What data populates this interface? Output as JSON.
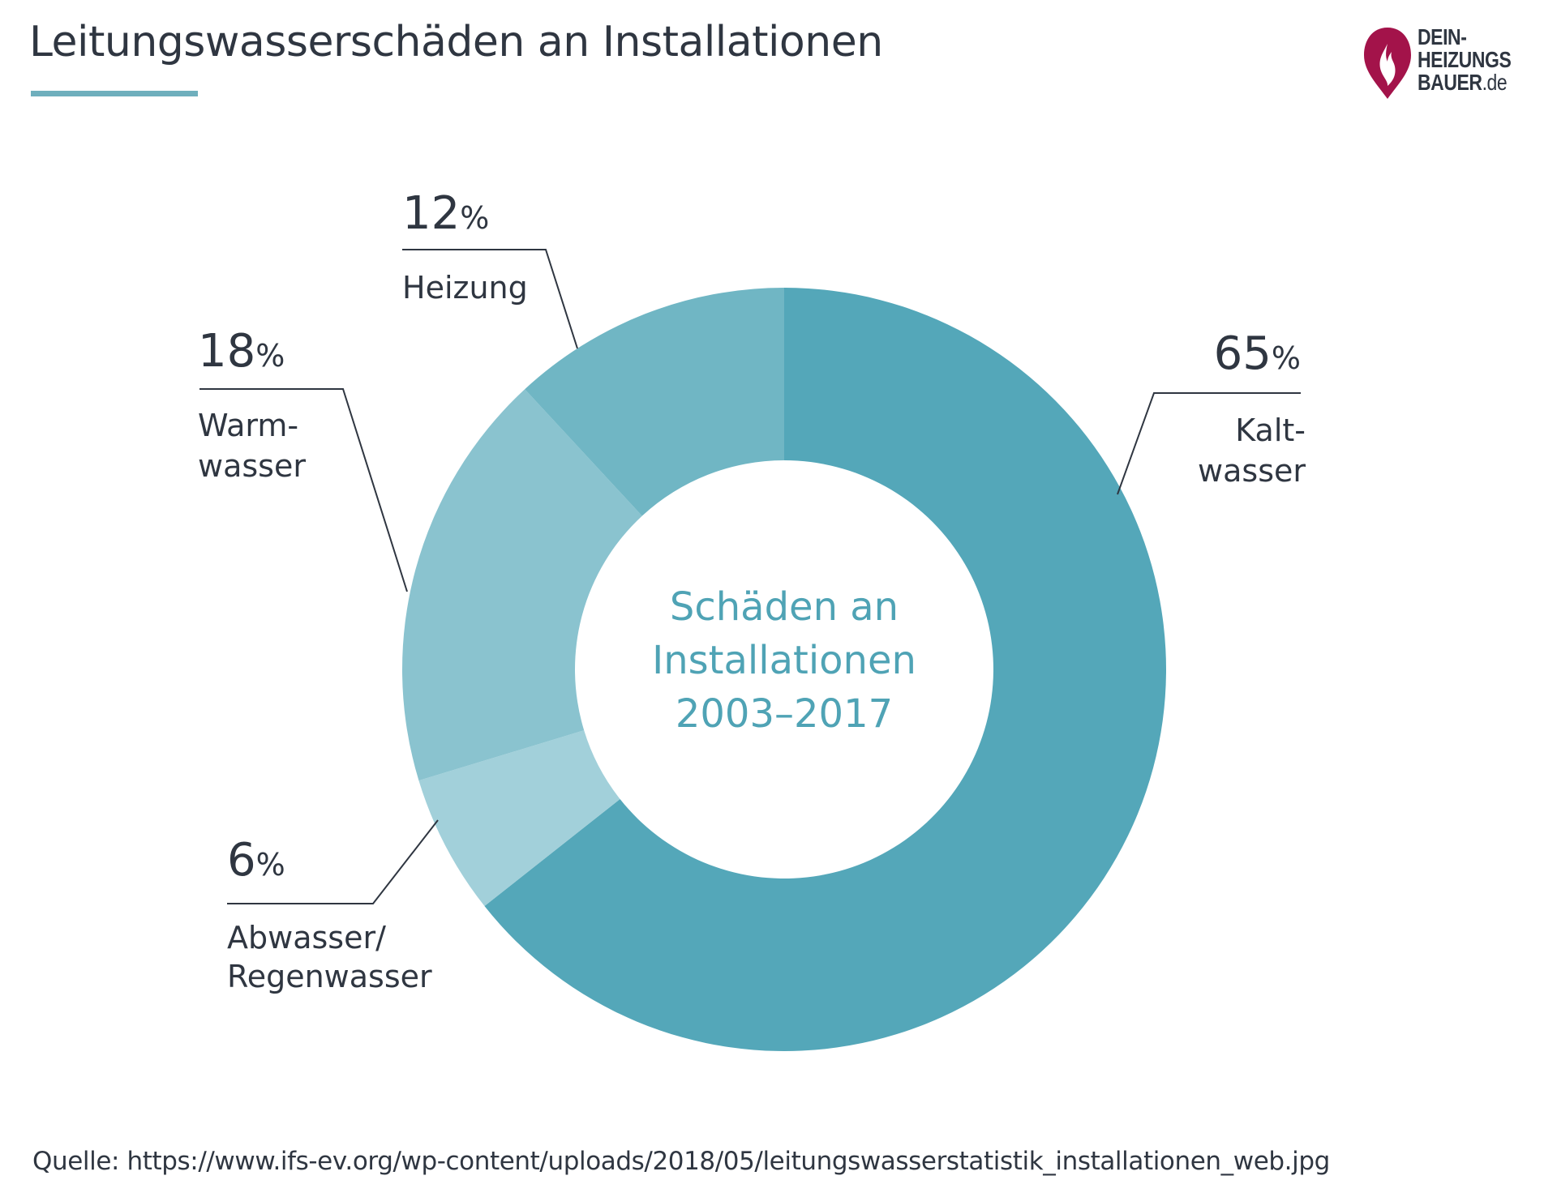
{
  "header": {
    "title": "Leitungswasserschäden an Installationen"
  },
  "logo": {
    "line1": "DEIN-",
    "line2": "HEIZUNGS",
    "line3": "BAUER",
    "tld": ".de",
    "flame_color": "#a3134a"
  },
  "chart_data": {
    "type": "pie",
    "donut": true,
    "start_angle_deg": 0,
    "direction": "clockwise",
    "center_label": [
      "Schäden an",
      "Installationen",
      "2003–2017"
    ],
    "categories": [
      "Kaltwasser",
      "Abwasser/Regenwasser",
      "Warmwasser",
      "Heizung"
    ],
    "values": [
      65,
      6,
      18,
      12
    ],
    "unit": "%",
    "slices": [
      {
        "label_lines": [
          "Kalt-",
          "wasser"
        ],
        "value_text": "65",
        "value": 65,
        "color": "#54a7b9"
      },
      {
        "label_lines": [
          "Abwasser/",
          "Regenwasser"
        ],
        "value_text": "6",
        "value": 6,
        "color": "#a2d0da"
      },
      {
        "label_lines": [
          "Warm-",
          "wasser"
        ],
        "value_text": "18",
        "value": 18,
        "color": "#8ac3cf"
      },
      {
        "label_lines": [
          "Heizung"
        ],
        "value_text": "12",
        "value": 12,
        "color": "#70b6c4"
      }
    ]
  },
  "footer": {
    "source": "Quelle: https://www.ifs-ev.org/wp-content/uploads/2018/05/leitungswasserstatistik_installationen_web.jpg"
  }
}
